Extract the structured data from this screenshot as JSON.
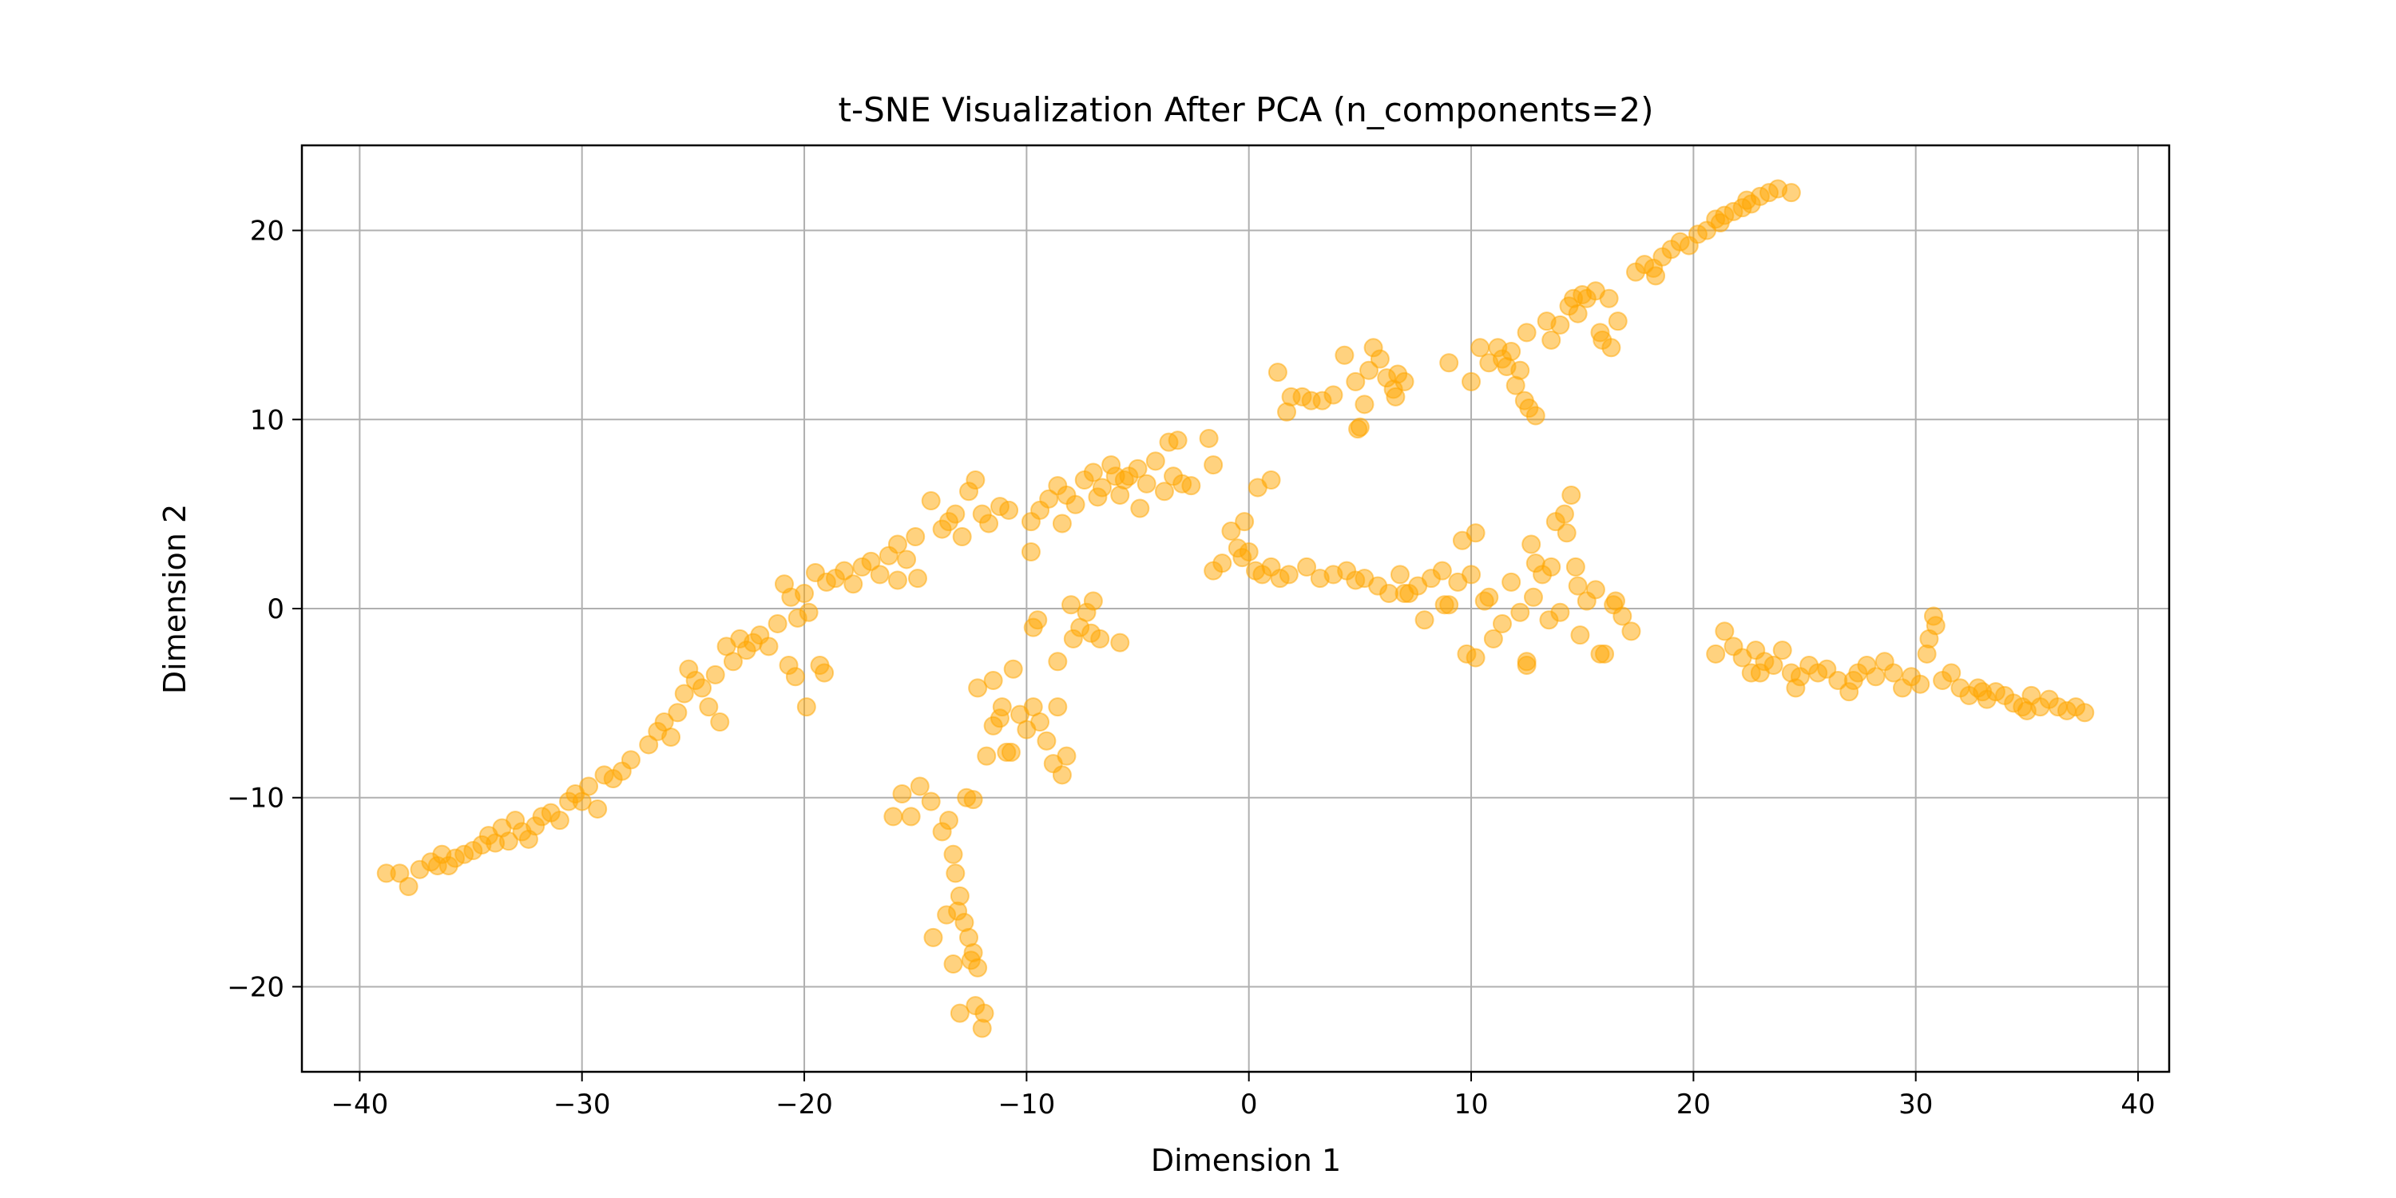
{
  "chart_data": {
    "type": "scatter",
    "title": "t-SNE Visualization After PCA (n_components=2)",
    "xlabel": "Dimension 1",
    "ylabel": "Dimension 2",
    "xlim": [
      -42.6,
      41.4
    ],
    "ylim": [
      -24.5,
      24.5
    ],
    "xticks": [
      -40,
      -30,
      -20,
      -10,
      0,
      10,
      20,
      30,
      40
    ],
    "xtick_labels": [
      "−40",
      "−30",
      "−20",
      "−10",
      "0",
      "10",
      "20",
      "30",
      "40"
    ],
    "yticks": [
      -20,
      -10,
      0,
      10,
      20
    ],
    "ytick_labels": [
      "−20",
      "−10",
      "0",
      "10",
      "20"
    ],
    "grid": true,
    "legend": false,
    "marker_color": "#ffa500",
    "marker_alpha": 0.5,
    "points": [
      [
        -38.8,
        -14.0
      ],
      [
        -38.2,
        -14.0
      ],
      [
        -37.8,
        -14.7
      ],
      [
        -37.3,
        -13.8
      ],
      [
        -36.8,
        -13.4
      ],
      [
        -36.5,
        -13.6
      ],
      [
        -36.3,
        -13.0
      ],
      [
        -36.0,
        -13.6
      ],
      [
        -35.7,
        -13.2
      ],
      [
        -35.3,
        -13.0
      ],
      [
        -34.9,
        -12.8
      ],
      [
        -34.5,
        -12.5
      ],
      [
        -34.2,
        -12.0
      ],
      [
        -33.9,
        -12.4
      ],
      [
        -33.6,
        -11.6
      ],
      [
        -33.3,
        -12.3
      ],
      [
        -33.0,
        -11.2
      ],
      [
        -32.7,
        -11.8
      ],
      [
        -32.4,
        -12.2
      ],
      [
        -32.1,
        -11.5
      ],
      [
        -31.8,
        -11.0
      ],
      [
        -31.4,
        -10.8
      ],
      [
        -31.0,
        -11.2
      ],
      [
        -30.6,
        -10.2
      ],
      [
        -30.3,
        -9.8
      ],
      [
        -30.0,
        -10.2
      ],
      [
        -29.7,
        -9.4
      ],
      [
        -29.3,
        -10.6
      ],
      [
        -29.0,
        -8.8
      ],
      [
        -28.6,
        -9.0
      ],
      [
        -28.2,
        -8.6
      ],
      [
        -27.8,
        -8.0
      ],
      [
        -27.0,
        -7.2
      ],
      [
        -26.6,
        -6.5
      ],
      [
        -26.3,
        -6.0
      ],
      [
        -26.0,
        -6.8
      ],
      [
        -25.7,
        -5.5
      ],
      [
        -25.4,
        -4.5
      ],
      [
        -25.2,
        -3.2
      ],
      [
        -24.9,
        -3.8
      ],
      [
        -24.6,
        -4.2
      ],
      [
        -24.3,
        -5.2
      ],
      [
        -24.0,
        -3.5
      ],
      [
        -23.8,
        -6.0
      ],
      [
        -23.5,
        -2.0
      ],
      [
        -23.2,
        -2.8
      ],
      [
        -22.9,
        -1.6
      ],
      [
        -22.6,
        -2.2
      ],
      [
        -22.3,
        -1.8
      ],
      [
        -22.0,
        -1.4
      ],
      [
        -21.6,
        -2.0
      ],
      [
        -21.2,
        -0.8
      ],
      [
        -20.9,
        1.3
      ],
      [
        -20.6,
        0.6
      ],
      [
        -20.3,
        -0.5
      ],
      [
        -20.0,
        0.8
      ],
      [
        -19.8,
        -0.2
      ],
      [
        -19.5,
        1.9
      ],
      [
        -19.3,
        -3.0
      ],
      [
        -19.1,
        -3.4
      ],
      [
        -19.9,
        -5.2
      ],
      [
        -20.4,
        -3.6
      ],
      [
        -20.7,
        -3.0
      ],
      [
        -19.0,
        1.4
      ],
      [
        -18.6,
        1.6
      ],
      [
        -18.2,
        2.0
      ],
      [
        -17.8,
        1.3
      ],
      [
        -17.4,
        2.2
      ],
      [
        -17.0,
        2.5
      ],
      [
        -16.6,
        1.8
      ],
      [
        -16.2,
        2.8
      ],
      [
        -15.8,
        3.4
      ],
      [
        -15.4,
        2.6
      ],
      [
        -15.0,
        3.8
      ],
      [
        -15.8,
        1.5
      ],
      [
        -14.9,
        1.6
      ],
      [
        -14.3,
        5.7
      ],
      [
        -13.8,
        4.2
      ],
      [
        -13.5,
        4.6
      ],
      [
        -13.2,
        5.0
      ],
      [
        -12.9,
        3.8
      ],
      [
        -12.6,
        6.2
      ],
      [
        -12.3,
        6.8
      ],
      [
        -12.0,
        5.0
      ],
      [
        -11.7,
        4.5
      ],
      [
        -11.2,
        5.4
      ],
      [
        -10.8,
        5.2
      ],
      [
        -9.8,
        4.6
      ],
      [
        -9.4,
        5.2
      ],
      [
        -9.0,
        5.8
      ],
      [
        -8.6,
        6.5
      ],
      [
        -8.2,
        6.0
      ],
      [
        -7.8,
        5.5
      ],
      [
        -7.4,
        6.8
      ],
      [
        -7.0,
        7.2
      ],
      [
        -6.6,
        6.4
      ],
      [
        -6.2,
        7.6
      ],
      [
        -5.8,
        6.0
      ],
      [
        -5.4,
        7.0
      ],
      [
        -5.0,
        7.4
      ],
      [
        -4.6,
        6.6
      ],
      [
        -4.2,
        7.8
      ],
      [
        -3.8,
        6.2
      ],
      [
        -3.4,
        7.0
      ],
      [
        -3.0,
        6.6
      ],
      [
        -2.6,
        6.5
      ],
      [
        -3.6,
        8.8
      ],
      [
        -3.2,
        8.9
      ],
      [
        -1.6,
        7.6
      ],
      [
        -1.8,
        9.0
      ],
      [
        -8.4,
        4.5
      ],
      [
        -6.8,
        5.9
      ],
      [
        -4.9,
        5.3
      ],
      [
        -5.6,
        6.8
      ],
      [
        -6.0,
        7.0
      ],
      [
        -16.0,
        -11.0
      ],
      [
        -15.6,
        -9.8
      ],
      [
        -15.2,
        -11.0
      ],
      [
        -14.8,
        -9.4
      ],
      [
        -14.3,
        -10.2
      ],
      [
        -13.8,
        -11.8
      ],
      [
        -13.5,
        -11.2
      ],
      [
        -13.3,
        -13.0
      ],
      [
        -13.2,
        -14.0
      ],
      [
        -13.0,
        -15.2
      ],
      [
        -13.1,
        -16.0
      ],
      [
        -12.8,
        -16.6
      ],
      [
        -12.6,
        -17.4
      ],
      [
        -12.4,
        -18.2
      ],
      [
        -12.2,
        -19.0
      ],
      [
        -12.5,
        -18.6
      ],
      [
        -13.0,
        -21.4
      ],
      [
        -12.3,
        -21.0
      ],
      [
        -12.0,
        -22.2
      ],
      [
        -11.9,
        -21.4
      ],
      [
        -14.2,
        -17.4
      ],
      [
        -13.6,
        -16.2
      ],
      [
        -12.7,
        -10.0
      ],
      [
        -12.4,
        -10.1
      ],
      [
        -13.3,
        -18.8
      ],
      [
        -12.2,
        -4.2
      ],
      [
        -11.8,
        -7.8
      ],
      [
        -11.5,
        -6.2
      ],
      [
        -11.2,
        -5.8
      ],
      [
        -10.9,
        -7.6
      ],
      [
        -10.6,
        -3.2
      ],
      [
        -10.3,
        -5.6
      ],
      [
        -10.0,
        -6.4
      ],
      [
        -9.7,
        -5.2
      ],
      [
        -9.4,
        -6.0
      ],
      [
        -9.1,
        -7.0
      ],
      [
        -8.8,
        -8.2
      ],
      [
        -8.6,
        -5.2
      ],
      [
        -8.4,
        -8.8
      ],
      [
        -8.2,
        -7.8
      ],
      [
        -11.5,
        -3.8
      ],
      [
        -10.7,
        -7.6
      ],
      [
        -11.1,
        -5.2
      ],
      [
        -8.6,
        -2.8
      ],
      [
        -9.5,
        -0.6
      ],
      [
        -9.7,
        -1.0
      ],
      [
        -9.8,
        3.0
      ],
      [
        -8.0,
        0.2
      ],
      [
        -7.6,
        -1.0
      ],
      [
        -7.3,
        -0.2
      ],
      [
        -7.0,
        0.4
      ],
      [
        -6.7,
        -1.6
      ],
      [
        -5.8,
        -1.8
      ],
      [
        -7.9,
        -1.6
      ],
      [
        -7.1,
        -1.3
      ],
      [
        -1.6,
        2.0
      ],
      [
        -1.2,
        2.4
      ],
      [
        -0.8,
        4.1
      ],
      [
        -0.5,
        3.2
      ],
      [
        -0.3,
        2.7
      ],
      [
        0.0,
        3.0
      ],
      [
        0.3,
        2.0
      ],
      [
        0.6,
        1.8
      ],
      [
        1.0,
        6.8
      ],
      [
        0.4,
        6.4
      ],
      [
        -0.2,
        4.6
      ],
      [
        1.0,
        2.2
      ],
      [
        1.4,
        1.6
      ],
      [
        1.8,
        1.8
      ],
      [
        2.6,
        2.2
      ],
      [
        3.2,
        1.6
      ],
      [
        3.8,
        1.8
      ],
      [
        4.4,
        2.0
      ],
      [
        4.8,
        1.5
      ],
      [
        5.2,
        1.6
      ],
      [
        5.8,
        1.2
      ],
      [
        6.3,
        0.8
      ],
      [
        6.8,
        1.8
      ],
      [
        7.2,
        0.8
      ],
      [
        7.6,
        1.2
      ],
      [
        7.9,
        -0.6
      ],
      [
        8.2,
        1.6
      ],
      [
        8.7,
        2.0
      ],
      [
        9.0,
        0.2
      ],
      [
        9.4,
        1.4
      ],
      [
        9.6,
        3.6
      ],
      [
        10.0,
        1.8
      ],
      [
        10.2,
        4.0
      ],
      [
        10.6,
        0.4
      ],
      [
        11.0,
        -1.6
      ],
      [
        11.4,
        -0.8
      ],
      [
        11.8,
        1.4
      ],
      [
        12.2,
        -0.2
      ],
      [
        12.5,
        -2.8
      ],
      [
        12.5,
        -3.0
      ],
      [
        12.8,
        0.6
      ],
      [
        13.2,
        1.8
      ],
      [
        13.6,
        2.2
      ],
      [
        14.0,
        -0.2
      ],
      [
        14.3,
        4.0
      ],
      [
        14.5,
        6.0
      ],
      [
        14.2,
        5.0
      ],
      [
        13.8,
        4.6
      ],
      [
        14.8,
        1.2
      ],
      [
        15.2,
        0.4
      ],
      [
        15.6,
        1.0
      ],
      [
        16.0,
        -2.4
      ],
      [
        16.4,
        0.2
      ],
      [
        16.8,
        -0.4
      ],
      [
        17.2,
        -1.2
      ],
      [
        9.8,
        -2.4
      ],
      [
        10.2,
        -2.6
      ],
      [
        10.8,
        0.6
      ],
      [
        12.9,
        2.4
      ],
      [
        12.7,
        3.4
      ],
      [
        14.7,
        2.2
      ],
      [
        16.5,
        0.4
      ],
      [
        15.8,
        -2.4
      ],
      [
        13.5,
        -0.6
      ],
      [
        14.9,
        -1.4
      ],
      [
        7.0,
        0.8
      ],
      [
        8.8,
        0.2
      ],
      [
        1.3,
        12.5
      ],
      [
        1.7,
        10.4
      ],
      [
        1.9,
        11.2
      ],
      [
        2.4,
        11.2
      ],
      [
        2.8,
        11.0
      ],
      [
        3.3,
        11.0
      ],
      [
        3.8,
        11.3
      ],
      [
        4.3,
        13.4
      ],
      [
        4.8,
        12.0
      ],
      [
        5.0,
        9.6
      ],
      [
        5.2,
        10.8
      ],
      [
        5.4,
        12.6
      ],
      [
        5.6,
        13.8
      ],
      [
        5.9,
        13.2
      ],
      [
        6.2,
        12.2
      ],
      [
        6.5,
        11.6
      ],
      [
        6.7,
        12.4
      ],
      [
        7.0,
        12.0
      ],
      [
        4.9,
        9.5
      ],
      [
        6.6,
        11.2
      ],
      [
        9.0,
        13.0
      ],
      [
        10.0,
        12.0
      ],
      [
        10.4,
        13.8
      ],
      [
        10.8,
        13.0
      ],
      [
        11.2,
        13.8
      ],
      [
        11.6,
        12.8
      ],
      [
        12.0,
        11.8
      ],
      [
        12.4,
        11.0
      ],
      [
        12.6,
        10.6
      ],
      [
        12.9,
        10.2
      ],
      [
        12.2,
        12.6
      ],
      [
        12.5,
        14.6
      ],
      [
        11.8,
        13.6
      ],
      [
        11.4,
        13.2
      ],
      [
        13.6,
        14.2
      ],
      [
        14.0,
        15.0
      ],
      [
        14.4,
        16.0
      ],
      [
        14.8,
        15.6
      ],
      [
        15.2,
        16.4
      ],
      [
        15.6,
        16.8
      ],
      [
        15.9,
        14.2
      ],
      [
        16.3,
        13.8
      ],
      [
        16.6,
        15.2
      ],
      [
        16.2,
        16.4
      ],
      [
        15.8,
        14.6
      ],
      [
        13.4,
        15.2
      ],
      [
        14.6,
        16.4
      ],
      [
        15.0,
        16.6
      ],
      [
        17.4,
        17.8
      ],
      [
        17.8,
        18.2
      ],
      [
        18.2,
        18.0
      ],
      [
        18.6,
        18.6
      ],
      [
        19.0,
        19.0
      ],
      [
        19.4,
        19.4
      ],
      [
        19.8,
        19.2
      ],
      [
        20.2,
        19.8
      ],
      [
        20.6,
        20.0
      ],
      [
        21.0,
        20.6
      ],
      [
        21.4,
        20.8
      ],
      [
        21.8,
        21.0
      ],
      [
        22.2,
        21.2
      ],
      [
        22.6,
        21.4
      ],
      [
        23.0,
        21.8
      ],
      [
        23.4,
        22.0
      ],
      [
        23.8,
        22.2
      ],
      [
        24.4,
        22.0
      ],
      [
        18.3,
        17.6
      ],
      [
        21.2,
        20.4
      ],
      [
        22.4,
        21.6
      ],
      [
        21.0,
        -2.4
      ],
      [
        21.4,
        -1.2
      ],
      [
        21.8,
        -2.0
      ],
      [
        22.2,
        -2.6
      ],
      [
        22.6,
        -3.4
      ],
      [
        22.8,
        -2.2
      ],
      [
        23.2,
        -2.8
      ],
      [
        23.6,
        -3.0
      ],
      [
        24.0,
        -2.2
      ],
      [
        24.4,
        -3.4
      ],
      [
        24.8,
        -3.6
      ],
      [
        25.2,
        -3.0
      ],
      [
        25.6,
        -3.4
      ],
      [
        26.0,
        -3.2
      ],
      [
        26.5,
        -3.8
      ],
      [
        27.0,
        -4.4
      ],
      [
        27.4,
        -3.4
      ],
      [
        27.8,
        -3.0
      ],
      [
        28.2,
        -3.6
      ],
      [
        28.6,
        -2.8
      ],
      [
        29.0,
        -3.4
      ],
      [
        29.4,
        -4.2
      ],
      [
        29.8,
        -3.6
      ],
      [
        30.2,
        -4.0
      ],
      [
        30.6,
        -1.6
      ],
      [
        30.8,
        -0.4
      ],
      [
        30.5,
        -2.4
      ],
      [
        30.9,
        -0.9
      ],
      [
        31.2,
        -3.8
      ],
      [
        31.6,
        -3.4
      ],
      [
        32.0,
        -4.2
      ],
      [
        32.4,
        -4.6
      ],
      [
        32.8,
        -4.2
      ],
      [
        33.2,
        -4.8
      ],
      [
        33.6,
        -4.4
      ],
      [
        34.0,
        -4.6
      ],
      [
        34.4,
        -5.0
      ],
      [
        34.8,
        -5.2
      ],
      [
        35.2,
        -4.6
      ],
      [
        35.6,
        -5.2
      ],
      [
        36.0,
        -4.8
      ],
      [
        36.4,
        -5.2
      ],
      [
        36.8,
        -5.4
      ],
      [
        37.2,
        -5.2
      ],
      [
        37.6,
        -5.5
      ],
      [
        23.0,
        -3.4
      ],
      [
        24.6,
        -4.2
      ],
      [
        35.0,
        -5.4
      ],
      [
        33.0,
        -4.4
      ],
      [
        27.2,
        -3.8
      ]
    ]
  }
}
